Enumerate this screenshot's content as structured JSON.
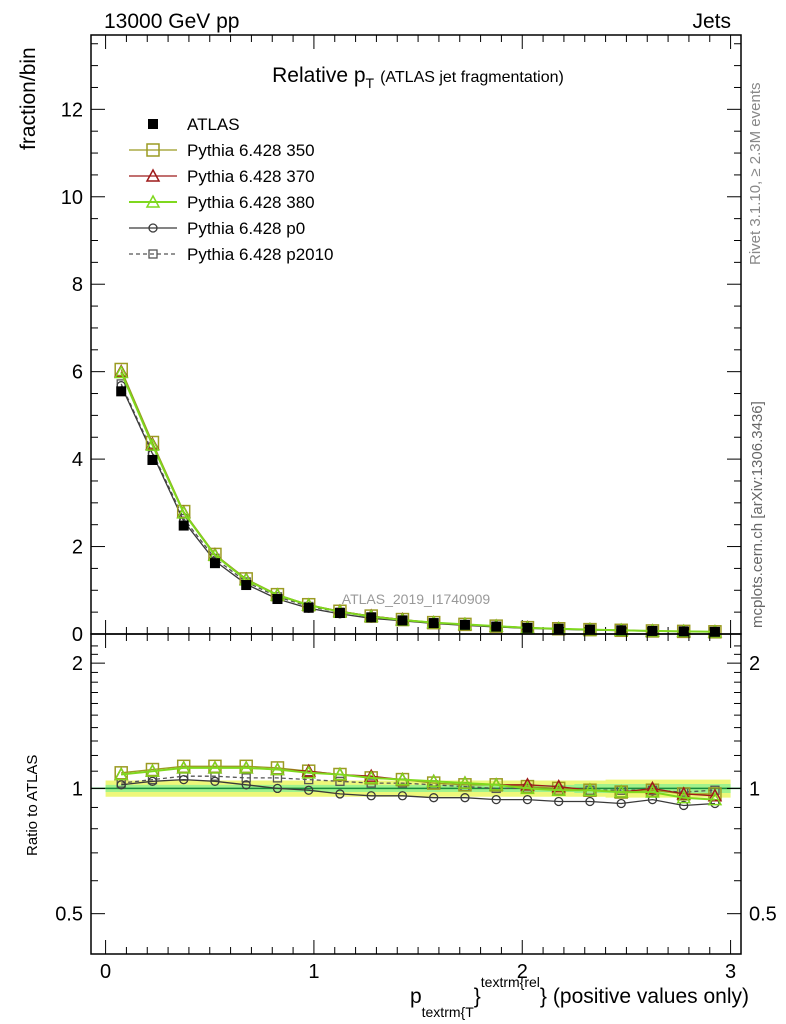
{
  "header": {
    "left": "13000 GeV pp",
    "right": "Jets"
  },
  "side_labels": {
    "rivet": "Rivet 3.1.10, ≥ 2.3M events",
    "mcplots": "mcplots.cern.ch [arXiv:1306.3436]"
  },
  "watermark": "ATLAS_2019_I1740909",
  "title": {
    "main": "Relative p",
    "sub": "T",
    "paren": "(ATLAS jet fragmentation)"
  },
  "ylabel_top": "fraction/bin",
  "ylabel_ratio": "Ratio to ATLAS",
  "xlabel": {
    "p": "p",
    "sub": "textrm{T",
    "brace1": "}",
    "sup": "textrm{rel",
    "brace2": "}",
    "rest": "(positive values only)"
  },
  "colors": {
    "atlas": "#000000",
    "p350": "#9b9b22",
    "p370": "#9e1a1a",
    "p380": "#7fd81e",
    "p0": "#3a3a3a",
    "p2010": "#555555",
    "band_outer": "#eef77a",
    "band_inner": "#9ff28c",
    "ref_line": "#1a8a3a"
  },
  "chart_data": [
    {
      "type": "line",
      "panel": "main",
      "ylim": [
        0,
        13.7
      ],
      "xlim": [
        -0.07,
        3.05
      ],
      "yticks": [
        0,
        2,
        4,
        6,
        8,
        10,
        12
      ],
      "ytick_labels": [
        "0",
        "2",
        "4",
        "6",
        "8",
        "10",
        "12"
      ],
      "legend_position": "top-left",
      "x": [
        0.075,
        0.225,
        0.375,
        0.525,
        0.675,
        0.825,
        0.975,
        1.125,
        1.275,
        1.425,
        1.575,
        1.725,
        1.875,
        2.025,
        2.175,
        2.325,
        2.475,
        2.625,
        2.775,
        2.925
      ],
      "series": [
        {
          "name": "ATLAS",
          "key": "atlas",
          "marker": "filled-square",
          "line": "none",
          "values": [
            5.55,
            3.98,
            2.48,
            1.62,
            1.12,
            0.8,
            0.6,
            0.48,
            0.38,
            0.31,
            0.25,
            0.21,
            0.17,
            0.14,
            0.12,
            0.1,
            0.085,
            0.07,
            0.06,
            0.05
          ]
        },
        {
          "name": "Pythia 6.428 350",
          "key": "p350",
          "marker": "open-square",
          "line": "solid",
          "values": [
            6.05,
            4.38,
            2.8,
            1.82,
            1.26,
            0.9,
            0.67,
            0.52,
            0.41,
            0.33,
            0.26,
            0.22,
            0.18,
            0.145,
            0.12,
            0.1,
            0.085,
            0.07,
            0.06,
            0.05
          ]
        },
        {
          "name": "Pythia 6.428 370",
          "key": "p370",
          "marker": "open-triangle",
          "line": "solid",
          "values": [
            6.0,
            4.34,
            2.78,
            1.81,
            1.25,
            0.89,
            0.66,
            0.52,
            0.41,
            0.33,
            0.26,
            0.22,
            0.18,
            0.145,
            0.12,
            0.1,
            0.085,
            0.07,
            0.06,
            0.05
          ]
        },
        {
          "name": "Pythia 6.428 380",
          "key": "p380",
          "marker": "open-triangle",
          "line": "solid",
          "values": [
            5.98,
            4.32,
            2.77,
            1.8,
            1.24,
            0.89,
            0.66,
            0.51,
            0.4,
            0.32,
            0.26,
            0.22,
            0.18,
            0.14,
            0.12,
            0.1,
            0.085,
            0.07,
            0.06,
            0.05
          ]
        },
        {
          "name": "Pythia 6.428 p0",
          "key": "p0",
          "marker": "open-circle",
          "line": "solid",
          "values": [
            5.68,
            4.12,
            2.58,
            1.67,
            1.14,
            0.8,
            0.59,
            0.46,
            0.36,
            0.3,
            0.24,
            0.2,
            0.16,
            0.13,
            0.11,
            0.09,
            0.078,
            0.065,
            0.054,
            0.046
          ]
        },
        {
          "name": "Pythia 6.428 p2010",
          "key": "p2010",
          "marker": "open-square-small",
          "line": "dashed",
          "values": [
            5.72,
            4.16,
            2.64,
            1.73,
            1.19,
            0.85,
            0.63,
            0.5,
            0.39,
            0.32,
            0.25,
            0.21,
            0.17,
            0.14,
            0.12,
            0.1,
            0.083,
            0.07,
            0.058,
            0.05
          ]
        }
      ]
    },
    {
      "type": "line",
      "panel": "ratio",
      "scale": "log",
      "ylim": [
        0.4,
        2.35
      ],
      "xlim": [
        -0.07,
        3.05
      ],
      "yticks": [
        0.5,
        1,
        2
      ],
      "ytick_labels": [
        "0.5",
        "1",
        "2"
      ],
      "xticks": [
        0,
        1,
        2,
        3
      ],
      "xtick_labels": [
        "0",
        "1",
        "2",
        "3"
      ],
      "x": [
        0.075,
        0.225,
        0.375,
        0.525,
        0.675,
        0.825,
        0.975,
        1.125,
        1.275,
        1.425,
        1.575,
        1.725,
        1.875,
        2.025,
        2.175,
        2.325,
        2.475,
        2.625,
        2.775,
        2.925
      ],
      "band_outer_halfwidth": [
        0.045,
        0.045,
        0.045,
        0.045,
        0.045,
        0.045,
        0.045,
        0.045,
        0.045,
        0.045,
        0.045,
        0.045,
        0.045,
        0.045,
        0.045,
        0.045,
        0.05,
        0.05,
        0.05,
        0.05
      ],
      "band_inner_halfwidth": [
        0.02,
        0.02,
        0.02,
        0.02,
        0.02,
        0.02,
        0.02,
        0.02,
        0.02,
        0.02,
        0.02,
        0.02,
        0.02,
        0.02,
        0.02,
        0.025,
        0.025,
        0.025,
        0.025,
        0.025
      ],
      "series": [
        {
          "key": "p350",
          "marker": "open-square",
          "line": "solid",
          "values": [
            1.09,
            1.11,
            1.13,
            1.13,
            1.13,
            1.12,
            1.1,
            1.08,
            1.06,
            1.05,
            1.03,
            1.02,
            1.02,
            1.01,
            1.0,
            0.99,
            0.98,
            0.99,
            0.97,
            0.97
          ]
        },
        {
          "key": "p370",
          "marker": "open-triangle",
          "line": "solid",
          "values": [
            1.08,
            1.1,
            1.12,
            1.12,
            1.12,
            1.11,
            1.1,
            1.08,
            1.07,
            1.05,
            1.04,
            1.03,
            1.02,
            1.02,
            1.01,
            0.99,
            0.98,
            1.0,
            0.97,
            0.96
          ]
        },
        {
          "key": "p380",
          "marker": "open-triangle",
          "line": "solid",
          "values": [
            1.08,
            1.1,
            1.12,
            1.12,
            1.12,
            1.11,
            1.09,
            1.08,
            1.06,
            1.05,
            1.04,
            1.03,
            1.02,
            1.0,
            0.99,
            0.99,
            0.98,
            0.98,
            0.95,
            0.94
          ]
        },
        {
          "key": "p0",
          "marker": "open-circle",
          "line": "solid",
          "values": [
            1.02,
            1.04,
            1.05,
            1.04,
            1.02,
            1.0,
            0.99,
            0.97,
            0.96,
            0.96,
            0.95,
            0.95,
            0.94,
            0.94,
            0.93,
            0.93,
            0.92,
            0.94,
            0.91,
            0.92
          ]
        },
        {
          "key": "p2010",
          "marker": "open-square-small",
          "line": "dashed",
          "values": [
            1.03,
            1.05,
            1.07,
            1.07,
            1.06,
            1.06,
            1.05,
            1.04,
            1.03,
            1.03,
            1.02,
            1.01,
            1.0,
            1.0,
            0.99,
            0.99,
            0.99,
            0.99,
            0.98,
            0.99
          ]
        }
      ]
    }
  ]
}
